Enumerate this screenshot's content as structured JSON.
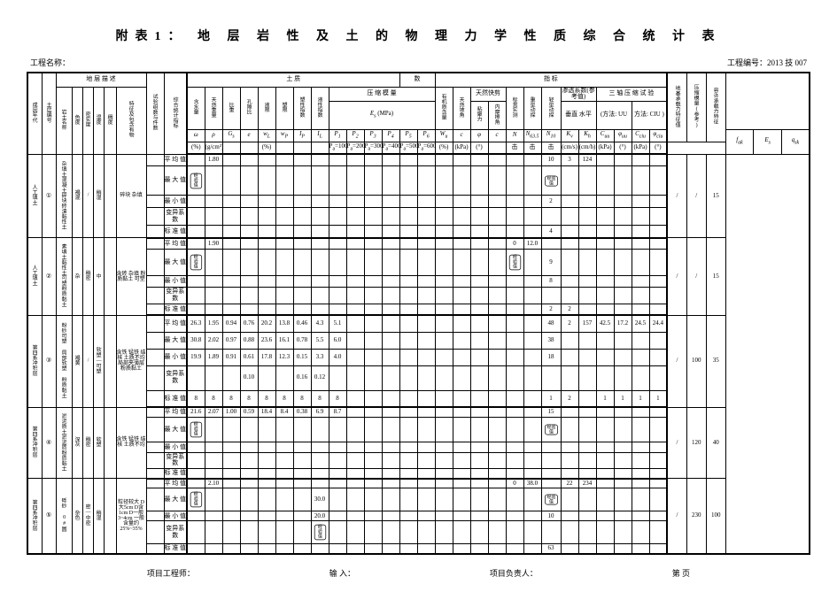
{
  "title": "附表1：  地 层 岩 性 及 土 的 物 理 力 学 性 质 综 合 统 计 表",
  "meta": {
    "project_label": "工程名称：",
    "project_no_label": "工程编号：",
    "project_no": "2013 技 007"
  },
  "header": {
    "group_labels": {
      "c1": "成因年代",
      "c2": "土层编号",
      "desc_group": "地  层  描  述",
      "desc_sub": [
        "岩土名称",
        "色度",
        "密实度",
        "湿度",
        "特征及包含有物"
      ],
      "shiyan": "试验组数与件数",
      "stat": "综合统计指标",
      "soil_group": "土                    质",
      "count_group": "数",
      "index_group": "指                标",
      "hanshui": "含水量",
      "tianran": "天然重量",
      "bizhong": "比重",
      "kongxi": "孔隙比",
      "yexian": "液限",
      "suxian": "塑限",
      "suxing": "塑性指数",
      "yexing": "液性指数",
      "eshrink": "压 缩 模 量",
      "e_sub": "E<sub>s</sub> (MPa)",
      "youji": "有机质含量",
      "tianran_po": "天然坡角",
      "kuaijian": "天然快剪",
      "njl": "粘聚力",
      "nmc": "内摩擦角",
      "biaoguan": "标贯实测",
      "zhongxing": "重型动探",
      "qingxing": "轻型动探",
      "shentou": "渗透系数(参考值)",
      "sanzhou": "三 轴 压 缩 试 验",
      "uu": "(方法: UU",
      "ciu": "方法: CIU )",
      "dzml": "地基承载力特征值",
      "ycml": "压缩模量(参考)",
      "rtkz": "容许承载力特征"
    },
    "unit_row": {
      "w": "ω",
      "rho": "ρ",
      "g": "G<sub>s</sub>",
      "e": "e",
      "wl": "w<sub>L</sub>",
      "wp": "w<sub>P</sub>",
      "ip": "I<sub>P</sub>",
      "il": "I<sub>L</sub>",
      "p1": "P<sub>a</sub>=100",
      "p2": "P<sub>a</sub>=200",
      "p3": "P<sub>a</sub>=300",
      "p4": "P<sub>a</sub>=400",
      "p5": "P<sub>a</sub>=500",
      "p6": "P<sub>a</sub>=600",
      "wu": "W<sub>u</sub>",
      "c": "c",
      "phi": "φ",
      "c_": "c",
      "phi_": "φ",
      "N": "N",
      "n635": "N<sub>63.5</sub>",
      "n10": "N<sub>10</sub>",
      "kv": "K<sub>v</sub>",
      "kh": "垂直 水平",
      "cuu": "C<sub>uu</sub>",
      "phiuu": "φ<sub>uu</sub>",
      "cciu": "C<sub>ciu</sub>",
      "phiciu": "φ<sub>ciu</sub>",
      "fak": "f<sub>ak</sub>",
      "es": "E<sub>s</sub>"
    },
    "unit_row2": {
      "pct": "(%)",
      "gcm": "(g/cm³)",
      "dash": "",
      "kpa": "(kPa)",
      "deg": "(°)",
      "cms": "(cm/s)",
      "击": "击"
    },
    "stat_rows": [
      "平 均 值",
      "最 大 值",
      "最 小 值",
      "变异系数",
      "标 准 值"
    ]
  },
  "blocks": [
    {
      "era": "人工填土",
      "no": "①",
      "lith": "杂填土混凝土碎块砖渣黏性土",
      "color": "褐混",
      "dense": "/",
      "moist": "稍湿",
      "note": "碎块 杂填",
      "rows": [
        {
          "label": "平 均 值",
          "vals": {
            "w": "",
            "rho": "1.80",
            "n10": "10",
            "n10b": "10.0",
            "kv": "3",
            "kh": "124"
          }
        },
        {
          "label": "最 大 值",
          "vals": {
            "w_strike": "经验值",
            "n10_strike": "经验值",
            "n10b": "4"
          }
        },
        {
          "label": "最 小 值",
          "vals": {
            "n10b": "2"
          }
        },
        {
          "label": "变异系数",
          "vals": {}
        },
        {
          "label": "标 准 值",
          "vals": {
            "n10b": "4"
          }
        }
      ],
      "tail": {
        "fak": "/",
        "es": "/",
        "qk": "15"
      }
    },
    {
      "era": "人工填土",
      "no": "②",
      "lith": "素填土黏性土可塑粉质黏土",
      "color": "杂",
      "dense": "稍密",
      "moist": "中",
      "note": "含砖 杂填 粉质黏土 可塑",
      "rows": [
        {
          "label": "平 均 值",
          "vals": {
            "rho": "1.90",
            "N": "0",
            "N2": "12.0",
            "kv": "",
            "kh": ""
          }
        },
        {
          "label": "最 大 值",
          "vals": {
            "w_strike": "经验值",
            "N_strike": "经验值",
            "n10b": "9"
          }
        },
        {
          "label": "最 小 值",
          "vals": {
            "n10b": "8"
          }
        },
        {
          "label": "变异系数",
          "vals": {}
        },
        {
          "label": "标 准 值",
          "vals": {
            "n10b": "2",
            "kv": "2"
          }
        }
      ],
      "tail": {
        "fak": "/",
        "es": "/",
        "qk": "15"
      }
    },
    {
      "era": "第四系冲积层",
      "no": "③",
      "lith": "粉砂可塑 局部软塑 粉质黏土",
      "color": "褐黄",
      "dense": "/",
      "moist": "软塑—可塑",
      "note": "含铁 锰铁 结核 土质不均 局部夹薄层粉质黏土",
      "rows": [
        {
          "label": "平 均 值",
          "vals": {
            "w": "26.3",
            "rho": "1.95",
            "g": "0.94",
            "e": "0.76",
            "wl": "20.2",
            "wp": "13.8",
            "ip": "0.46",
            "il": "4.3",
            "p1": "5.1",
            "N": "",
            "n10": "48",
            "kv": "2",
            "kh": "157",
            "cuu": "42.5",
            "phiuu": "17.2",
            "cciu": "24.5",
            "phiciu": "24.4"
          }
        },
        {
          "label": "最 大 值",
          "vals": {
            "w": "30.8",
            "rho": "2.02",
            "g": "0.97",
            "e": "0.88",
            "wl": "23.6",
            "wp": "16.1",
            "ip": "0.78",
            "il": "5.5",
            "p1": "6.0",
            "n10": "38",
            "n10b": "12.0"
          }
        },
        {
          "label": "最 小 值",
          "vals": {
            "w": "19.9",
            "rho": "1.89",
            "g": "0.91",
            "e": "0.61",
            "wl": "17.8",
            "wp": "12.3",
            "ip": "0.15",
            "il": "3.3",
            "p1": "4.0",
            "n10": "18",
            "n10b": "6.0"
          }
        },
        {
          "label": "变异系数",
          "vals": {
            "e": "0.10",
            "ip": "0.16",
            "il": "0.12"
          }
        },
        {
          "label": "标 准 值",
          "vals": {
            "w": "8",
            "rho": "8",
            "g": "8",
            "e": "8",
            "wl": "8",
            "wp": "8",
            "ip": "8",
            "il": "8",
            "p1": "8",
            "n10": "1",
            "n10b": "2",
            "kv": "2",
            "cuu": "1",
            "phiuu": "1",
            "cciu": "1",
            "phiciu": "1"
          }
        }
      ],
      "tail": {
        "fak": "/",
        "es": "100",
        "qk": "35"
      }
    },
    {
      "era": "第四系冲积层",
      "no": "④",
      "lith": "淤泥质土淤泥质粉质黏土",
      "color": "深灰",
      "dense": "稍密",
      "moist": "软塑",
      "note": "含铁 锰铁 结核 土质不均",
      "rows": [
        {
          "label": "平 均 值",
          "vals": {
            "w": "21.6",
            "rho": "2.07",
            "g": "1.00",
            "e": "0.59",
            "wl": "18.4",
            "wp": "8.4",
            "ip": "0.38",
            "il": "6.9",
            "p1": "8.7",
            "n10": "15",
            "n10b": "20.0"
          }
        },
        {
          "label": "最 大 值",
          "vals": {
            "w_strike": "经验值",
            "n10_strike": "经验值"
          }
        },
        {
          "label": "最 小 值",
          "vals": {}
        },
        {
          "label": "变异系数",
          "vals": {}
        },
        {
          "label": "标 准 值",
          "vals": {}
        }
      ],
      "tail": {
        "fak": "/",
        "es": "120",
        "qk": "40"
      }
    },
    {
      "era": "第四系冲积层",
      "no": "⑤",
      "lith": "砾砂 0#圆",
      "color": "杂色",
      "dense": "密—中密",
      "moist": "稍湿",
      "note": "粒径较大 D大5cm D含1cm D一般 3~4cm 一般含量约 25%~35%",
      "rows": [
        {
          "label": "平 均 值",
          "vals": {
            "rho": "2.10",
            "N": "0",
            "N2": "38.0",
            "kv": "22",
            "kh": "234",
            "perm": "(2×10⁻³)"
          }
        },
        {
          "label": "最 大 值",
          "vals": {
            "w_strike": "经验值",
            "il": "30.0",
            "n10_strike": "经验值",
            "n10b": "38"
          }
        },
        {
          "label": "最 小 值",
          "vals": {
            "il": "20.0",
            "n10b": "10"
          }
        },
        {
          "label": "变异系数",
          "vals": {
            "il_strike": "经验值"
          }
        },
        {
          "label": "标 准 值",
          "vals": {
            "n10b": "63"
          }
        }
      ],
      "tail": {
        "fak": "/",
        "es": "230",
        "qk": "100"
      }
    }
  ],
  "footer": {
    "a": "项目工程师：",
    "b": "输    入：",
    "c": "项目负责人：",
    "d": "第  页"
  }
}
